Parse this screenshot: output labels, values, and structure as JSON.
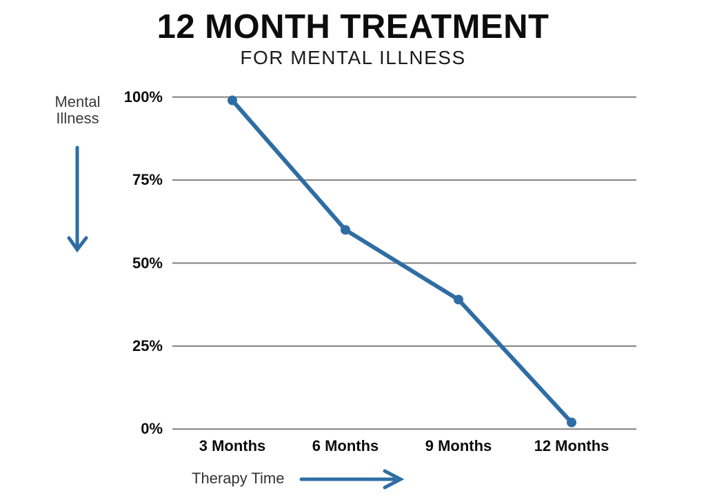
{
  "title": "12 MONTH TREATMENT",
  "subtitle": "FOR MENTAL ILLNESS",
  "annotations": {
    "y_axis": {
      "line1": "Mental",
      "line2": "Illness",
      "arrow_direction": "down"
    },
    "x_axis": {
      "label": "Therapy Time",
      "arrow_direction": "right"
    }
  },
  "chart_data": {
    "type": "line",
    "title": "12 MONTH TREATMENT",
    "subtitle": "FOR MENTAL ILLNESS",
    "xlabel": "Therapy Time",
    "ylabel": "Mental Illness",
    "categories": [
      "3 Months",
      "6 Months",
      "9 Months",
      "12 Months"
    ],
    "values": [
      99,
      60,
      39,
      2
    ],
    "series": [
      {
        "name": "Mental Illness",
        "values": [
          99,
          60,
          39,
          2
        ]
      }
    ],
    "y_ticks": [
      "100%",
      "75%",
      "50%",
      "25%",
      "0%"
    ],
    "y_tick_values": [
      100,
      75,
      50,
      25,
      0
    ],
    "ylim": [
      0,
      100
    ],
    "grid": "horizontal",
    "legend": "none",
    "markers": true
  },
  "colors": {
    "accent_blue": "#2e6da4",
    "grid": "#7f7f7f",
    "title_text": "#0d0d0d",
    "label_text": "#0c0c0c",
    "annotation_text": "#3a3a3a"
  }
}
